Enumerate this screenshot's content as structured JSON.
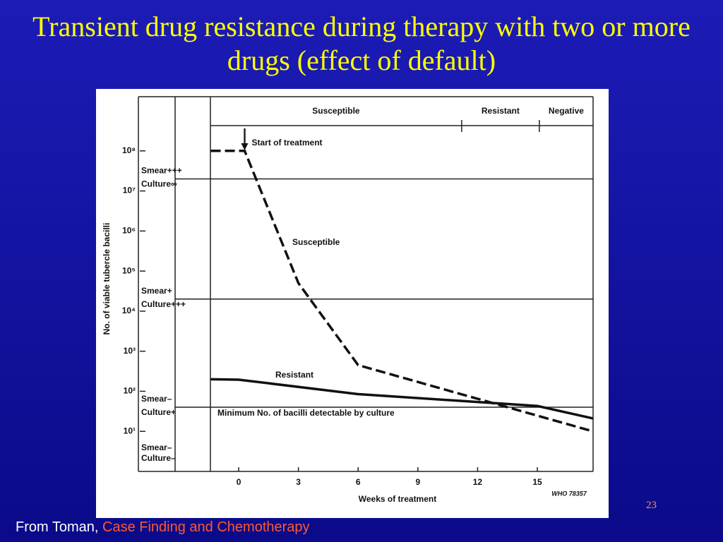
{
  "title": "Transient drug resistance during therapy with two or more drugs (effect of default)",
  "chart_data": {
    "type": "line",
    "xlabel": "Weeks of treatment",
    "ylabel": "No. of viable tubercle bacilli",
    "credit": "WHO 78357",
    "log_y": true,
    "xlim": [
      -1.42,
      17.8
    ],
    "ylim": [
      1,
      1000000000
    ],
    "xticks": [
      0,
      3,
      6,
      9,
      12,
      15
    ],
    "yticks": [
      {
        "value": 10,
        "label": "10¹"
      },
      {
        "value": 100,
        "label": "10²"
      },
      {
        "value": 1000,
        "label": "10³"
      },
      {
        "value": 10000,
        "label": "10⁴"
      },
      {
        "value": 100000,
        "label": "10⁵"
      },
      {
        "value": 1000000,
        "label": "10⁶"
      },
      {
        "value": 10000000,
        "label": "10⁷"
      },
      {
        "value": 100000000,
        "label": "10⁸"
      }
    ],
    "series": [
      {
        "name": "Susceptible",
        "color": "#111111",
        "dashed": true,
        "x": [
          -1.4,
          0.3,
          3,
          6,
          17.8
        ],
        "values": [
          100000000,
          100000000,
          50000,
          450,
          10
        ]
      },
      {
        "name": "Resistant",
        "color": "#111111",
        "dashed": false,
        "x": [
          -1.4,
          0,
          6,
          15,
          17.8
        ],
        "values": [
          200,
          195,
          85,
          43,
          21
        ]
      }
    ],
    "phases": [
      {
        "label": "Susceptible",
        "start": -1.42
      },
      {
        "label": "Resistant",
        "start": 11.2
      },
      {
        "label": "Negative",
        "start": 15.1
      }
    ],
    "annotations": [
      {
        "text": "Start of treatment",
        "x": 0.3
      }
    ],
    "levels": [
      {
        "value": 20000000,
        "smear": "Smear+++",
        "culture": "Culture∞"
      },
      {
        "value": 20000,
        "smear": "Smear+",
        "culture": "Culture+++"
      },
      {
        "value": 40,
        "smear": "Smear–",
        "culture": "Culture+",
        "label": "Minimum No. of bacilli detectable by culture"
      }
    ],
    "bottom_level": {
      "smear": "Smear–",
      "culture": "Culture–"
    }
  },
  "footer": {
    "prefix": "From Toman,",
    "source": "Case Finding and Chemotherapy"
  },
  "page_number": "23"
}
